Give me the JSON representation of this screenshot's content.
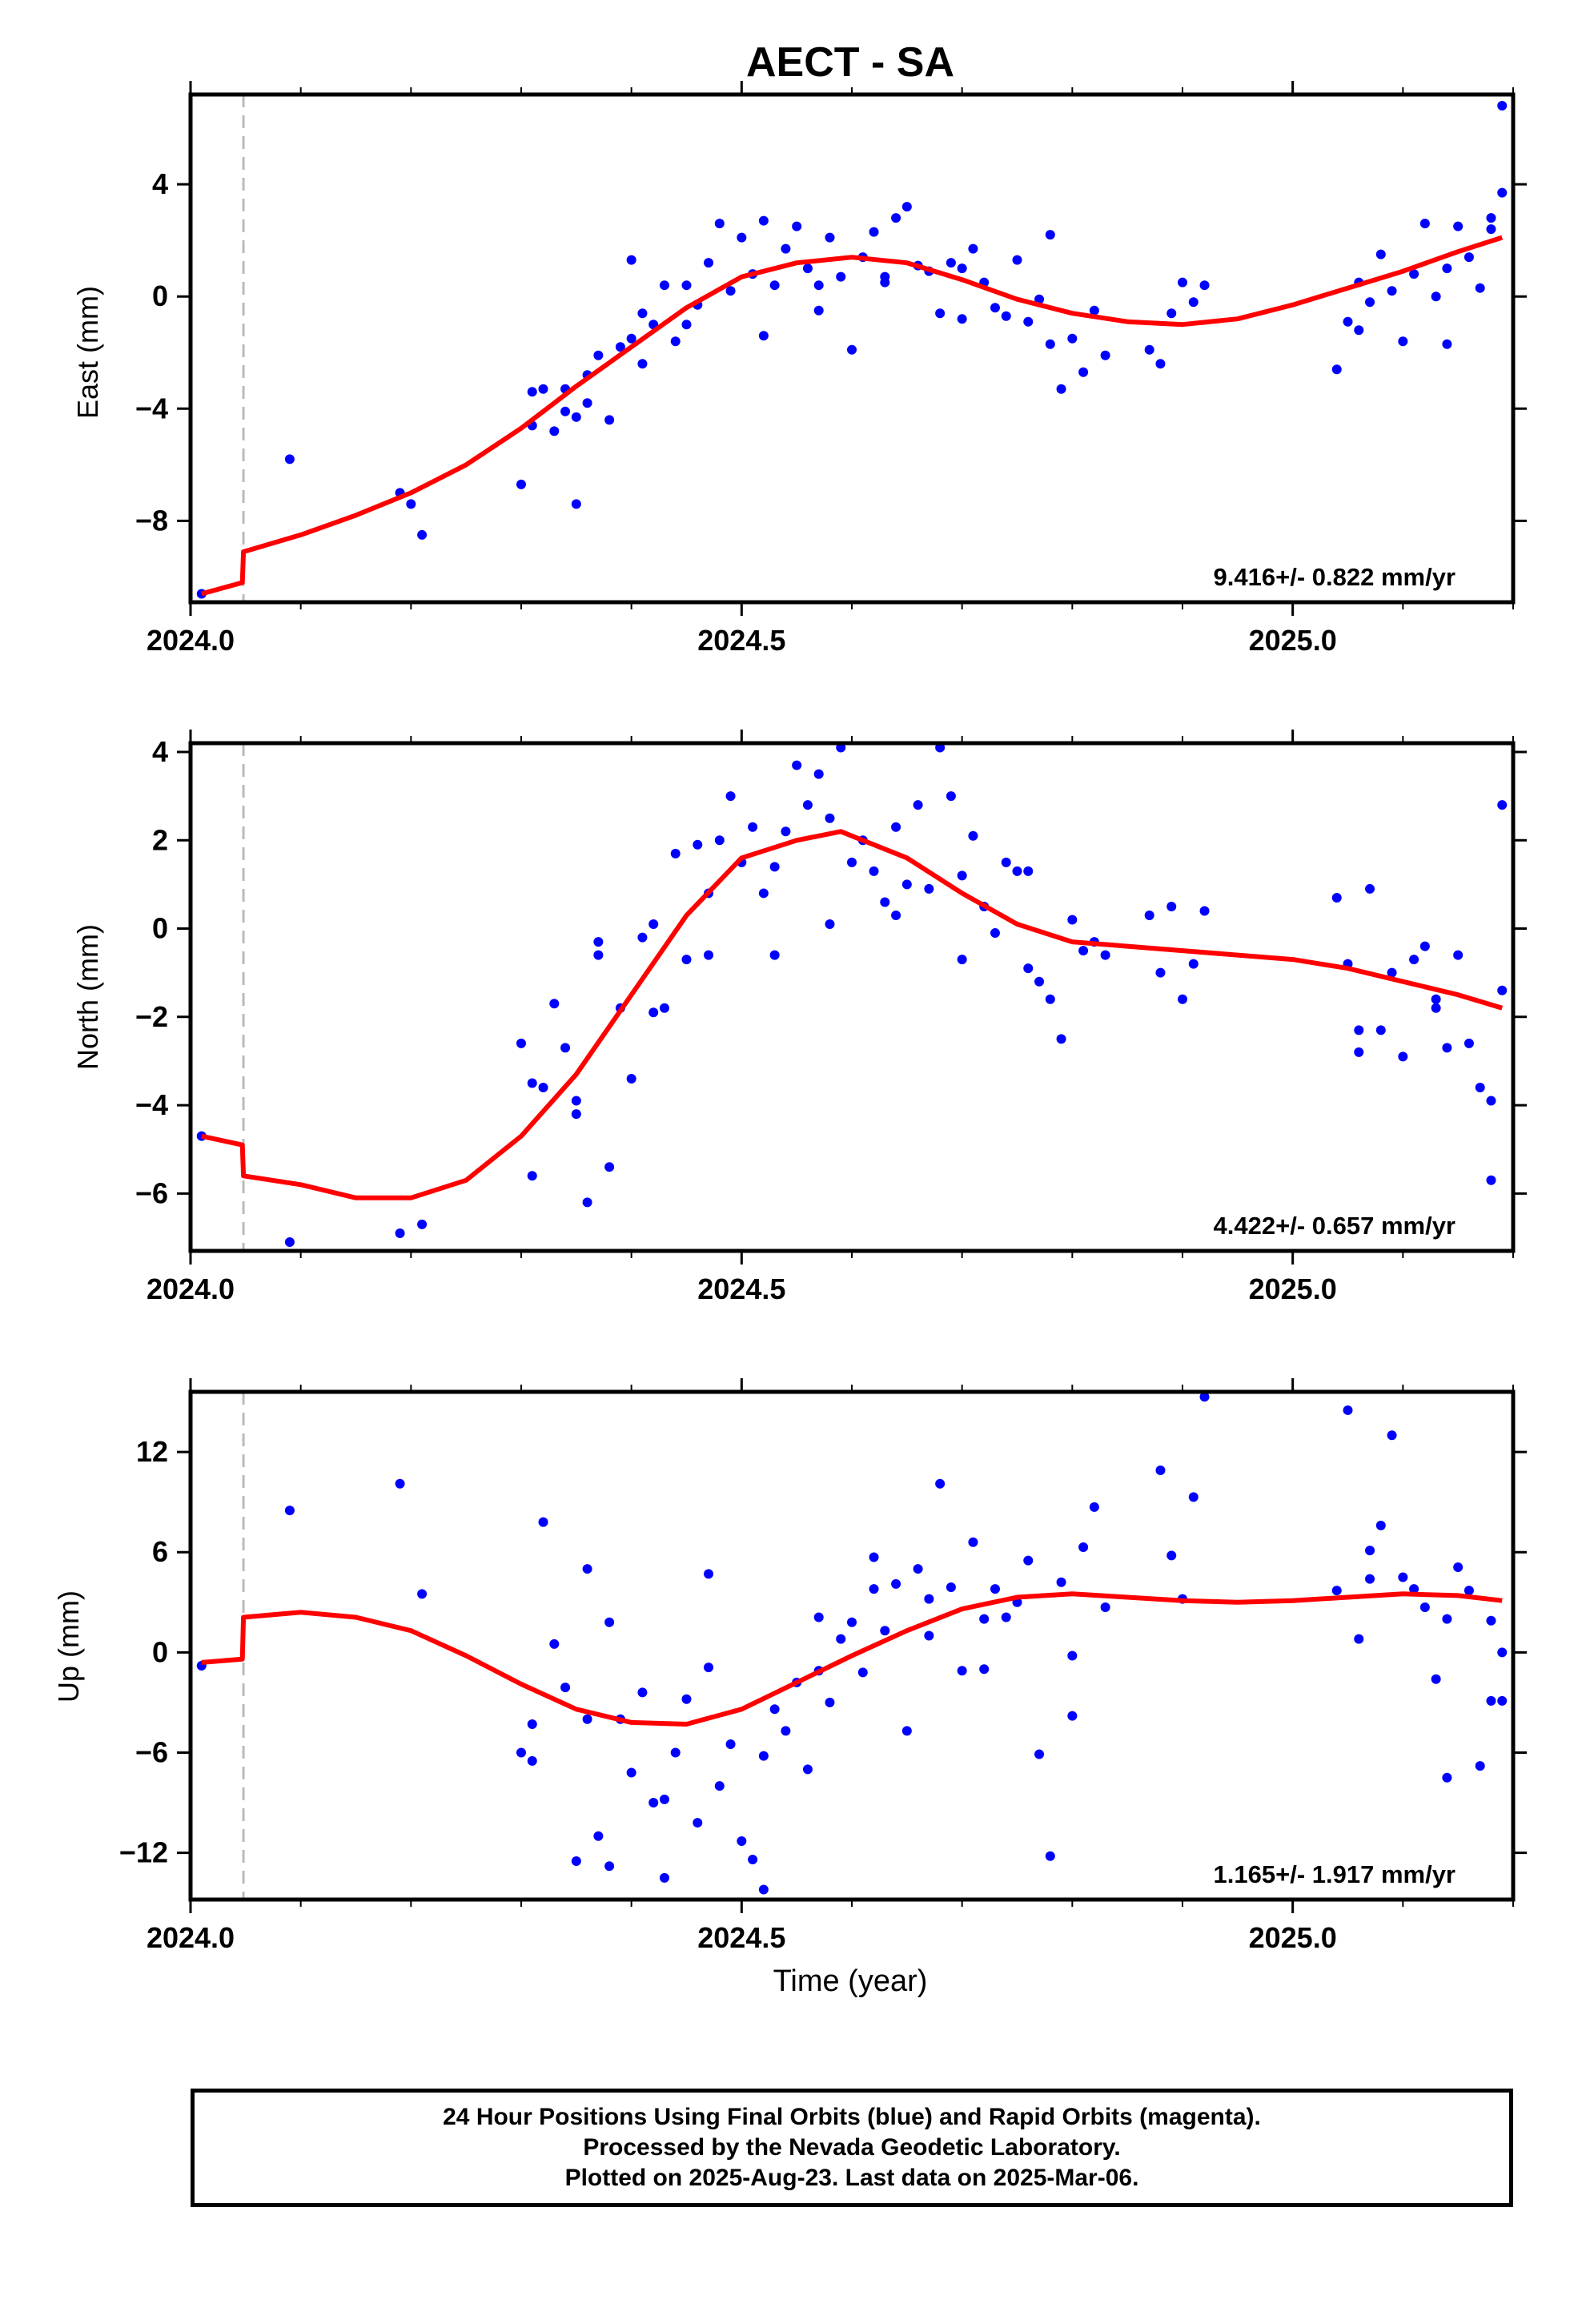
{
  "title": "AECT - SA",
  "xlabel": "Time (year)",
  "caption": {
    "line1": "24 Hour Positions Using Final Orbits (blue) and Rapid Orbits (magenta).",
    "line2": "Processed by the Nevada Geodetic Laboratory.",
    "line3": "Plotted on 2025-Aug-23. Last data on 2025-Mar-06."
  },
  "colors": {
    "points": "#0000ff",
    "fit": "#ff0000",
    "break_line": "#bbbbbb",
    "frame": "#000000"
  },
  "chart_data": [
    {
      "type": "scatter",
      "panel": "east",
      "ylabel": "East (mm)",
      "xlim": [
        2024.0,
        2025.2
      ],
      "ylim": [
        -10.9,
        7.2
      ],
      "xticks": [
        2024.0,
        2024.5,
        2025.0
      ],
      "xtick_labels": [
        "2024.0",
        "2024.5",
        "2025.0"
      ],
      "yticks": [
        -8,
        -4,
        0,
        4
      ],
      "ytick_labels": [
        "−8",
        "−4",
        "0",
        "4"
      ],
      "grid": false,
      "break_line_x": 2024.048,
      "rate_label": "9.416+/- 0.822 mm/yr",
      "series": [
        {
          "name": "Final Orbits",
          "x": [
            2024.01,
            2024.09,
            2024.19,
            2024.21,
            2024.2,
            2024.3,
            2024.31,
            2024.32,
            2024.33,
            2024.34,
            2024.35,
            2024.35,
            2024.36,
            2024.37,
            2024.38,
            2024.39,
            2024.4,
            2024.4,
            2024.41,
            2024.42,
            2024.43,
            2024.44,
            2024.45,
            2024.46,
            2024.47,
            2024.48,
            2024.49,
            2024.5,
            2024.51,
            2024.52,
            2024.53,
            2024.54,
            2024.55,
            2024.56,
            2024.57,
            2024.58,
            2024.59,
            2024.6,
            2024.61,
            2024.62,
            2024.63,
            2024.64,
            2024.65,
            2024.66,
            2024.67,
            2024.68,
            2024.69,
            2024.7,
            2024.71,
            2024.72,
            2024.73,
            2024.74,
            2024.75,
            2024.76,
            2024.77,
            2024.78,
            2024.79,
            2024.8,
            2024.81,
            2024.82,
            2024.83,
            2024.87,
            2024.88,
            2024.89,
            2024.9,
            2024.91,
            2024.92,
            2025.04,
            2025.05,
            2025.06,
            2025.07,
            2025.08,
            2025.09,
            2025.1,
            2025.11,
            2025.12,
            2025.13,
            2025.14,
            2025.15,
            2025.16,
            2025.17,
            2025.18,
            2025.19,
            2025.19,
            2024.31,
            2024.34,
            2024.36,
            2024.41,
            2024.45,
            2024.52,
            2024.57,
            2024.63,
            2024.7,
            2024.78,
            2025.06,
            2025.14,
            2025.18
          ],
          "y": [
            -10.6,
            -5.8,
            -7.0,
            -8.5,
            -7.4,
            -6.7,
            -4.6,
            -3.3,
            -4.8,
            -4.1,
            -7.4,
            -4.3,
            -3.8,
            -2.1,
            -4.4,
            -1.8,
            1.3,
            -1.5,
            -0.6,
            -1.0,
            0.4,
            -1.6,
            0.4,
            -0.3,
            1.2,
            2.6,
            0.2,
            2.1,
            0.8,
            2.7,
            0.4,
            1.7,
            2.5,
            1.0,
            -0.5,
            2.1,
            0.7,
            -1.9,
            1.4,
            2.3,
            0.7,
            2.8,
            3.2,
            1.1,
            0.9,
            -0.6,
            1.2,
            1.0,
            1.7,
            0.5,
            -0.4,
            -0.7,
            1.3,
            -0.9,
            -0.1,
            2.2,
            -3.3,
            -1.5,
            -2.7,
            -0.5,
            -2.1,
            -1.9,
            -2.4,
            -0.6,
            0.5,
            -0.2,
            0.4,
            -2.6,
            -0.9,
            0.5,
            -0.2,
            1.5,
            0.2,
            -1.6,
            0.8,
            2.6,
            0.0,
            1.0,
            2.5,
            1.4,
            0.3,
            2.8,
            3.7,
            6.8,
            -3.4,
            -3.3,
            -2.8,
            -2.4,
            -1.0,
            -1.4,
            0.4,
            0.5,
            -0.8,
            -1.7,
            -1.2,
            -1.7,
            2.4
          ]
        }
      ],
      "fit": {
        "x": [
          2024.01,
          2024.047,
          2024.048,
          2024.1,
          2024.15,
          2024.2,
          2024.25,
          2024.3,
          2024.35,
          2024.4,
          2024.45,
          2024.5,
          2024.55,
          2024.6,
          2024.65,
          2024.7,
          2024.75,
          2024.8,
          2024.85,
          2024.9,
          2024.95,
          2025.0,
          2025.05,
          2025.1,
          2025.15,
          2025.19
        ],
        "y": [
          -10.6,
          -10.2,
          -9.1,
          -8.5,
          -7.8,
          -7.0,
          -6.0,
          -4.7,
          -3.2,
          -1.8,
          -0.4,
          0.7,
          1.2,
          1.4,
          1.2,
          0.6,
          -0.1,
          -0.6,
          -0.9,
          -1.0,
          -0.8,
          -0.3,
          0.3,
          0.9,
          1.6,
          2.1
        ]
      }
    },
    {
      "type": "scatter",
      "panel": "north",
      "ylabel": "North (mm)",
      "xlim": [
        2024.0,
        2025.2
      ],
      "ylim": [
        -7.3,
        4.2
      ],
      "xticks": [
        2024.0,
        2024.5,
        2025.0
      ],
      "xtick_labels": [
        "2024.0",
        "2024.5",
        "2025.0"
      ],
      "yticks": [
        -6,
        -4,
        -2,
        0,
        2,
        4
      ],
      "ytick_labels": [
        "−6",
        "−4",
        "−2",
        "0",
        "2",
        "4"
      ],
      "grid": false,
      "break_line_x": 2024.048,
      "rate_label": "4.422+/- 0.657 mm/yr",
      "series": [
        {
          "name": "Final Orbits",
          "x": [
            2024.01,
            2024.09,
            2024.19,
            2024.21,
            2024.3,
            2024.31,
            2024.32,
            2024.33,
            2024.34,
            2024.35,
            2024.36,
            2024.37,
            2024.38,
            2024.39,
            2024.4,
            2024.41,
            2024.42,
            2024.43,
            2024.44,
            2024.45,
            2024.46,
            2024.47,
            2024.48,
            2024.49,
            2024.5,
            2024.51,
            2024.52,
            2024.53,
            2024.54,
            2024.55,
            2024.56,
            2024.57,
            2024.58,
            2024.59,
            2024.6,
            2024.61,
            2024.62,
            2024.63,
            2024.64,
            2024.65,
            2024.66,
            2024.67,
            2024.68,
            2024.69,
            2024.7,
            2024.71,
            2024.72,
            2024.73,
            2024.74,
            2024.75,
            2024.76,
            2024.77,
            2024.78,
            2024.79,
            2024.8,
            2024.81,
            2024.82,
            2024.83,
            2024.87,
            2024.88,
            2024.89,
            2024.9,
            2024.91,
            2024.92,
            2025.04,
            2025.05,
            2025.06,
            2025.07,
            2025.08,
            2025.09,
            2025.1,
            2025.11,
            2025.12,
            2025.13,
            2025.14,
            2025.15,
            2025.16,
            2025.17,
            2025.18,
            2025.19,
            2025.19,
            2024.31,
            2024.35,
            2024.37,
            2024.42,
            2024.47,
            2024.53,
            2024.58,
            2024.64,
            2024.7,
            2024.76,
            2025.06,
            2025.13,
            2025.18
          ],
          "y": [
            -4.7,
            -7.1,
            -6.9,
            -6.7,
            -2.6,
            -5.6,
            -3.6,
            -1.7,
            -2.7,
            -3.9,
            -6.2,
            -0.6,
            -5.4,
            -1.8,
            -3.4,
            -0.2,
            0.1,
            -1.8,
            1.7,
            -0.7,
            1.9,
            0.8,
            2.0,
            3.0,
            1.5,
            2.3,
            0.8,
            -0.6,
            2.2,
            3.7,
            2.8,
            3.5,
            0.1,
            4.1,
            1.5,
            2.0,
            1.3,
            0.6,
            2.3,
            1.0,
            2.8,
            0.9,
            4.1,
            3.0,
            1.2,
            2.1,
            0.5,
            -0.1,
            1.5,
            1.3,
            -0.9,
            -1.2,
            -1.6,
            -2.5,
            0.2,
            -0.5,
            -0.3,
            -0.6,
            0.3,
            -1.0,
            0.5,
            -1.6,
            -0.8,
            0.4,
            0.7,
            -0.8,
            -2.3,
            0.9,
            -2.3,
            -1.0,
            -2.9,
            -0.7,
            -0.4,
            -1.8,
            -2.7,
            -0.6,
            -2.6,
            -3.6,
            -3.9,
            -1.4,
            2.8,
            -3.5,
            -4.2,
            -0.3,
            -1.9,
            -0.6,
            1.4,
            2.5,
            0.3,
            -0.7,
            1.3,
            -2.8,
            -1.6,
            -5.7
          ]
        }
      ],
      "fit": {
        "x": [
          2024.01,
          2024.047,
          2024.048,
          2024.1,
          2024.15,
          2024.2,
          2024.25,
          2024.3,
          2024.35,
          2024.4,
          2024.45,
          2024.5,
          2024.55,
          2024.59,
          2024.65,
          2024.7,
          2024.75,
          2024.8,
          2024.85,
          2024.9,
          2024.95,
          2025.0,
          2025.05,
          2025.1,
          2025.15,
          2025.19
        ],
        "y": [
          -4.7,
          -4.9,
          -5.6,
          -5.8,
          -6.1,
          -6.1,
          -5.7,
          -4.7,
          -3.3,
          -1.5,
          0.3,
          1.6,
          2.0,
          2.2,
          1.6,
          0.8,
          0.1,
          -0.3,
          -0.4,
          -0.5,
          -0.6,
          -0.7,
          -0.9,
          -1.2,
          -1.5,
          -1.8
        ]
      }
    },
    {
      "type": "scatter",
      "panel": "up",
      "ylabel": "Up (mm)",
      "xlim": [
        2024.0,
        2025.2
      ],
      "ylim": [
        -14.8,
        15.6
      ],
      "xticks": [
        2024.0,
        2024.5,
        2025.0
      ],
      "xtick_labels": [
        "2024.0",
        "2024.5",
        "2025.0"
      ],
      "yticks": [
        -12,
        -6,
        0,
        6,
        12
      ],
      "ytick_labels": [
        "−12",
        "−6",
        "0",
        "6",
        "12"
      ],
      "grid": false,
      "break_line_x": 2024.048,
      "rate_label": "1.165+/- 1.917 mm/yr",
      "series": [
        {
          "name": "Final Orbits",
          "x": [
            2024.01,
            2024.09,
            2024.19,
            2024.21,
            2024.3,
            2024.31,
            2024.32,
            2024.33,
            2024.34,
            2024.35,
            2024.36,
            2024.37,
            2024.38,
            2024.39,
            2024.4,
            2024.41,
            2024.42,
            2024.43,
            2024.44,
            2024.45,
            2024.46,
            2024.47,
            2024.48,
            2024.49,
            2024.5,
            2024.51,
            2024.52,
            2024.53,
            2024.54,
            2024.55,
            2024.56,
            2024.57,
            2024.58,
            2024.59,
            2024.6,
            2024.61,
            2024.62,
            2024.63,
            2024.64,
            2024.65,
            2024.66,
            2024.67,
            2024.68,
            2024.69,
            2024.7,
            2024.71,
            2024.72,
            2024.73,
            2024.74,
            2024.75,
            2024.76,
            2024.77,
            2024.78,
            2024.79,
            2024.8,
            2024.81,
            2024.82,
            2024.83,
            2024.88,
            2024.89,
            2024.9,
            2024.91,
            2024.92,
            2025.04,
            2025.05,
            2025.06,
            2025.07,
            2025.08,
            2025.09,
            2025.1,
            2025.11,
            2025.12,
            2025.13,
            2025.14,
            2025.15,
            2025.16,
            2025.17,
            2025.18,
            2025.19,
            2025.19,
            2024.31,
            2024.36,
            2024.38,
            2024.43,
            2024.47,
            2024.52,
            2024.57,
            2024.62,
            2024.67,
            2024.72,
            2024.8,
            2025.07,
            2025.14,
            2025.18
          ],
          "y": [
            -0.8,
            8.5,
            10.1,
            3.5,
            -6.0,
            -4.3,
            7.8,
            0.5,
            -2.1,
            -12.5,
            5.0,
            -11.0,
            1.8,
            -4.0,
            -7.2,
            -2.4,
            -9.0,
            -13.5,
            -6.0,
            -2.8,
            -10.2,
            4.7,
            -8.0,
            -5.5,
            -11.3,
            -12.4,
            -6.2,
            -3.4,
            -4.7,
            -1.8,
            -7.0,
            2.1,
            -3.0,
            0.8,
            1.8,
            -1.2,
            5.7,
            1.3,
            4.1,
            -4.7,
            5.0,
            3.2,
            10.1,
            3.9,
            -1.1,
            6.6,
            2.0,
            3.8,
            2.1,
            3.0,
            5.5,
            -6.1,
            -12.2,
            4.2,
            -3.8,
            6.3,
            8.7,
            2.7,
            10.9,
            5.8,
            3.2,
            9.3,
            15.3,
            3.7,
            14.5,
            0.8,
            6.1,
            7.6,
            13.0,
            4.5,
            3.8,
            2.7,
            -1.6,
            2.0,
            5.1,
            3.7,
            -6.8,
            1.9,
            -2.9,
            0.0,
            -6.5,
            -4.0,
            -12.8,
            -8.8,
            -0.9,
            -14.2,
            -1.1,
            3.8,
            1.0,
            -1.0,
            -0.2,
            4.4,
            -7.5,
            -2.9
          ]
        }
      ],
      "fit": {
        "x": [
          2024.01,
          2024.047,
          2024.048,
          2024.1,
          2024.15,
          2024.2,
          2024.25,
          2024.3,
          2024.35,
          2024.4,
          2024.45,
          2024.5,
          2024.55,
          2024.6,
          2024.65,
          2024.7,
          2024.75,
          2024.8,
          2024.85,
          2024.9,
          2024.95,
          2025.0,
          2025.05,
          2025.1,
          2025.15,
          2025.19
        ],
        "y": [
          -0.6,
          -0.4,
          2.1,
          2.4,
          2.1,
          1.3,
          -0.2,
          -1.9,
          -3.4,
          -4.2,
          -4.3,
          -3.4,
          -1.8,
          -0.2,
          1.3,
          2.6,
          3.3,
          3.5,
          3.3,
          3.1,
          3.0,
          3.1,
          3.3,
          3.5,
          3.4,
          3.1
        ]
      }
    }
  ]
}
